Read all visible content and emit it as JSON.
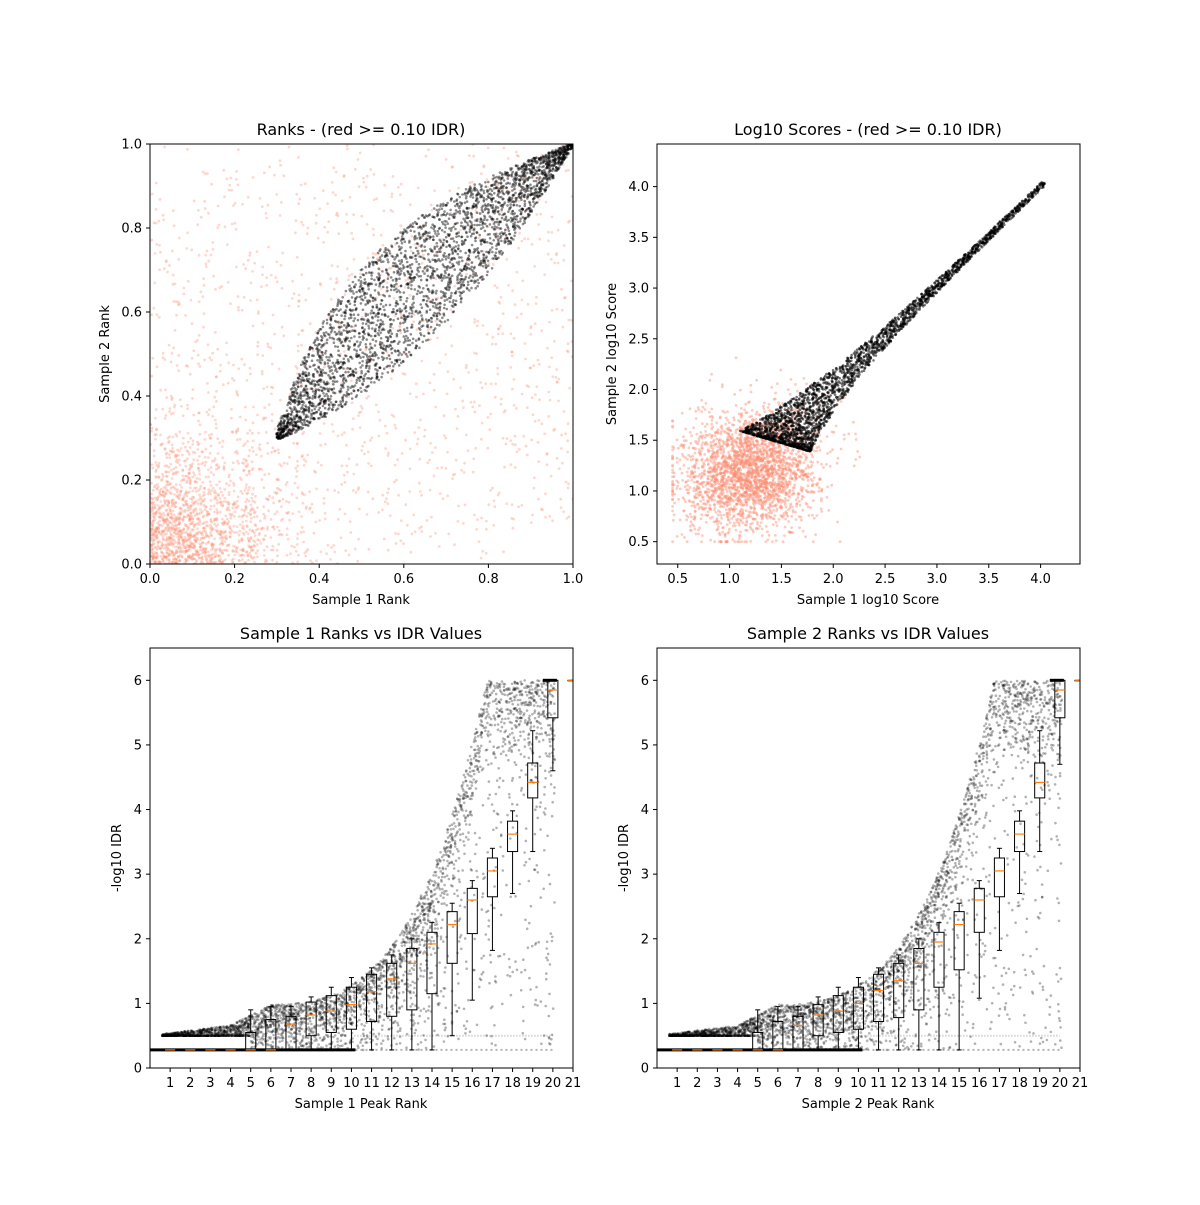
{
  "figure": {
    "background": "#ffffff"
  },
  "colors": {
    "red": "#fa8f73",
    "black": "#000000",
    "median": "#ff7f0e"
  },
  "chart_data": [
    {
      "id": "ranks",
      "type": "scatter",
      "title": "Ranks - (red >= 0.10 IDR)",
      "xlabel": "Sample 1 Rank",
      "ylabel": "Sample 2 Rank",
      "xlim": [
        0,
        1
      ],
      "ylim": [
        0,
        1
      ],
      "xticks": [
        0.0,
        0.2,
        0.4,
        0.6,
        0.8,
        1.0
      ],
      "yticks": [
        0.0,
        0.2,
        0.4,
        0.6,
        0.8,
        1.0
      ],
      "xticklabels": [
        "0.0",
        "0.2",
        "0.4",
        "0.6",
        "0.8",
        "1.0"
      ],
      "yticklabels": [
        "0.0",
        "0.2",
        "0.4",
        "0.6",
        "0.8",
        "1.0"
      ],
      "grid": false,
      "series": [
        {
          "color": "#fa8f73",
          "description_points": "dense cloud concentrated near origin, scattered across full range",
          "center": [
            0.15,
            0.15
          ],
          "spread": [
            0.35,
            0.35
          ]
        },
        {
          "color": "#000000",
          "points": "elongated lens shape along diagonal from (0.30,0.30) to (1.0,1.0), widest near (0.6,0.65)",
          "start": [
            0.3,
            0.3
          ],
          "end": [
            1.0,
            1.0
          ]
        }
      ]
    },
    {
      "id": "scores",
      "type": "scatter",
      "title": "Log10 Scores - (red >= 0.10 IDR)",
      "xlabel": "Sample 1 log10 Score",
      "ylabel": "Sample 2 log10 Score",
      "xlim": [
        0.3,
        4.38
      ],
      "ylim": [
        0.28,
        4.42
      ],
      "xticks": [
        0.5,
        1.0,
        1.5,
        2.0,
        2.5,
        3.0,
        3.5,
        4.0
      ],
      "yticks": [
        0.5,
        1.0,
        1.5,
        2.0,
        2.5,
        3.0,
        3.5,
        4.0
      ],
      "xticklabels": [
        "0.5",
        "1.0",
        "1.5",
        "2.0",
        "2.5",
        "3.0",
        "3.5",
        "4.0"
      ],
      "yticklabels": [
        "0.5",
        "1.0",
        "1.5",
        "2.0",
        "2.5",
        "3.0",
        "3.5",
        "4.0"
      ],
      "grid": false,
      "series": [
        {
          "color": "#fa8f73",
          "cloud_center": [
            1.2,
            1.2
          ],
          "cloud_extent": [
            [
              0.45,
              2.3
            ],
            [
              0.5,
              2.4
            ]
          ]
        },
        {
          "color": "#000000",
          "band_start": [
            1.42,
            1.42
          ],
          "band_end": [
            4.2,
            4.2
          ]
        }
      ]
    },
    {
      "id": "s1idr",
      "type": "scatter",
      "title": "Sample 1 Ranks vs IDR Values",
      "xlabel": "Sample 1 Peak Rank",
      "ylabel": "-log10 IDR",
      "xlim": [
        0,
        21
      ],
      "ylim": [
        0,
        6.5
      ],
      "xticks": [
        1,
        2,
        3,
        4,
        5,
        6,
        7,
        8,
        9,
        10,
        11,
        12,
        13,
        14,
        15,
        16,
        17,
        18,
        19,
        20,
        21
      ],
      "yticks": [
        0,
        1,
        2,
        3,
        4,
        5,
        6
      ],
      "xticklabels": [
        "1",
        "2",
        "3",
        "4",
        "5",
        "6",
        "7",
        "8",
        "9",
        "10",
        "11",
        "12",
        "13",
        "14",
        "15",
        "16",
        "17",
        "18",
        "19",
        "20",
        "21"
      ],
      "yticklabels": [
        "0",
        "1",
        "2",
        "3",
        "4",
        "5",
        "6"
      ],
      "grid": false,
      "boxes": [
        {
          "pos": 1,
          "q1": 0.28,
          "med": 0.28,
          "q3": 0.28,
          "wlo": 0.28,
          "whi": 0.28
        },
        {
          "pos": 2,
          "q1": 0.28,
          "med": 0.28,
          "q3": 0.28,
          "wlo": 0.28,
          "whi": 0.28
        },
        {
          "pos": 3,
          "q1": 0.28,
          "med": 0.28,
          "q3": 0.28,
          "wlo": 0.28,
          "whi": 0.28
        },
        {
          "pos": 4,
          "q1": 0.28,
          "med": 0.28,
          "q3": 0.28,
          "wlo": 0.28,
          "whi": 0.28
        },
        {
          "pos": 5,
          "q1": 0.28,
          "med": 0.28,
          "q3": 0.55,
          "wlo": 0.28,
          "whi": 0.9
        },
        {
          "pos": 6,
          "q1": 0.28,
          "med": 0.28,
          "q3": 0.75,
          "wlo": 0.28,
          "whi": 0.95
        },
        {
          "pos": 7,
          "q1": 0.28,
          "med": 0.68,
          "q3": 0.8,
          "wlo": 0.28,
          "whi": 0.95
        },
        {
          "pos": 8,
          "q1": 0.5,
          "med": 0.82,
          "q3": 1.02,
          "wlo": 0.28,
          "whi": 1.1
        },
        {
          "pos": 9,
          "q1": 0.55,
          "med": 0.88,
          "q3": 1.12,
          "wlo": 0.28,
          "whi": 1.25
        },
        {
          "pos": 10,
          "q1": 0.6,
          "med": 0.98,
          "q3": 1.25,
          "wlo": 0.28,
          "whi": 1.4
        },
        {
          "pos": 11,
          "q1": 0.72,
          "med": 1.18,
          "q3": 1.45,
          "wlo": 0.28,
          "whi": 1.55
        },
        {
          "pos": 12,
          "q1": 0.8,
          "med": 1.38,
          "q3": 1.62,
          "wlo": 0.28,
          "whi": 1.75
        },
        {
          "pos": 13,
          "q1": 0.9,
          "med": 1.62,
          "q3": 1.85,
          "wlo": 0.28,
          "whi": 2.0
        },
        {
          "pos": 14,
          "q1": 1.15,
          "med": 1.92,
          "q3": 2.1,
          "wlo": 0.28,
          "whi": 2.25
        },
        {
          "pos": 15,
          "q1": 1.62,
          "med": 2.22,
          "q3": 2.42,
          "wlo": 0.5,
          "whi": 2.55
        },
        {
          "pos": 16,
          "q1": 2.08,
          "med": 2.6,
          "q3": 2.78,
          "wlo": 1.05,
          "whi": 2.9
        },
        {
          "pos": 17,
          "q1": 2.65,
          "med": 3.05,
          "q3": 3.25,
          "wlo": 1.82,
          "whi": 3.4
        },
        {
          "pos": 18,
          "q1": 3.35,
          "med": 3.62,
          "q3": 3.82,
          "wlo": 2.7,
          "whi": 3.98
        },
        {
          "pos": 19,
          "q1": 4.18,
          "med": 4.42,
          "q3": 4.72,
          "wlo": 3.35,
          "whi": 5.22
        },
        {
          "pos": 20,
          "q1": 5.42,
          "med": 5.85,
          "q3": 6.0,
          "wlo": 4.6,
          "whi": 6.0
        },
        {
          "pos": 21,
          "q1": 6.0,
          "med": 6.0,
          "q3": 6.0,
          "wlo": 6.0,
          "whi": 6.0
        }
      ],
      "scatter_envelope": {
        "floor": 0.28,
        "secondary_floor": 0.5,
        "max": 6.0
      }
    },
    {
      "id": "s2idr",
      "type": "scatter",
      "title": "Sample 2 Ranks vs IDR Values",
      "xlabel": "Sample 2 Peak Rank",
      "ylabel": "-log10 IDR",
      "xlim": [
        0,
        21
      ],
      "ylim": [
        0,
        6.5
      ],
      "xticks": [
        1,
        2,
        3,
        4,
        5,
        6,
        7,
        8,
        9,
        10,
        11,
        12,
        13,
        14,
        15,
        16,
        17,
        18,
        19,
        20,
        21
      ],
      "yticks": [
        0,
        1,
        2,
        3,
        4,
        5,
        6
      ],
      "xticklabels": [
        "1",
        "2",
        "3",
        "4",
        "5",
        "6",
        "7",
        "8",
        "9",
        "10",
        "11",
        "12",
        "13",
        "14",
        "15",
        "16",
        "17",
        "18",
        "19",
        "20",
        "21"
      ],
      "yticklabels": [
        "0",
        "1",
        "2",
        "3",
        "4",
        "5",
        "6"
      ],
      "grid": false,
      "boxes": [
        {
          "pos": 1,
          "q1": 0.28,
          "med": 0.28,
          "q3": 0.28,
          "wlo": 0.28,
          "whi": 0.28
        },
        {
          "pos": 2,
          "q1": 0.28,
          "med": 0.28,
          "q3": 0.28,
          "wlo": 0.28,
          "whi": 0.28
        },
        {
          "pos": 3,
          "q1": 0.28,
          "med": 0.28,
          "q3": 0.28,
          "wlo": 0.28,
          "whi": 0.28
        },
        {
          "pos": 4,
          "q1": 0.28,
          "med": 0.28,
          "q3": 0.28,
          "wlo": 0.28,
          "whi": 0.28
        },
        {
          "pos": 5,
          "q1": 0.28,
          "med": 0.28,
          "q3": 0.55,
          "wlo": 0.28,
          "whi": 0.9
        },
        {
          "pos": 6,
          "q1": 0.28,
          "med": 0.28,
          "q3": 0.72,
          "wlo": 0.28,
          "whi": 0.95
        },
        {
          "pos": 7,
          "q1": 0.28,
          "med": 0.66,
          "q3": 0.8,
          "wlo": 0.28,
          "whi": 0.95
        },
        {
          "pos": 8,
          "q1": 0.5,
          "med": 0.82,
          "q3": 0.98,
          "wlo": 0.28,
          "whi": 1.1
        },
        {
          "pos": 9,
          "q1": 0.55,
          "med": 0.88,
          "q3": 1.12,
          "wlo": 0.28,
          "whi": 1.25
        },
        {
          "pos": 10,
          "q1": 0.6,
          "med": 1.0,
          "q3": 1.25,
          "wlo": 0.28,
          "whi": 1.4
        },
        {
          "pos": 11,
          "q1": 0.72,
          "med": 1.2,
          "q3": 1.45,
          "wlo": 0.28,
          "whi": 1.55
        },
        {
          "pos": 12,
          "q1": 0.78,
          "med": 1.35,
          "q3": 1.62,
          "wlo": 0.28,
          "whi": 1.75
        },
        {
          "pos": 13,
          "q1": 0.9,
          "med": 1.62,
          "q3": 1.85,
          "wlo": 0.28,
          "whi": 2.0
        },
        {
          "pos": 14,
          "q1": 1.25,
          "med": 1.95,
          "q3": 2.1,
          "wlo": 0.28,
          "whi": 2.25
        },
        {
          "pos": 15,
          "q1": 1.52,
          "med": 2.22,
          "q3": 2.42,
          "wlo": 0.28,
          "whi": 2.55
        },
        {
          "pos": 16,
          "q1": 2.1,
          "med": 2.6,
          "q3": 2.78,
          "wlo": 1.08,
          "whi": 2.9
        },
        {
          "pos": 17,
          "q1": 2.65,
          "med": 3.05,
          "q3": 3.25,
          "wlo": 1.82,
          "whi": 3.4
        },
        {
          "pos": 18,
          "q1": 3.35,
          "med": 3.62,
          "q3": 3.82,
          "wlo": 2.7,
          "whi": 3.98
        },
        {
          "pos": 19,
          "q1": 4.18,
          "med": 4.42,
          "q3": 4.72,
          "wlo": 3.35,
          "whi": 5.22
        },
        {
          "pos": 20,
          "q1": 5.42,
          "med": 5.85,
          "q3": 6.0,
          "wlo": 4.7,
          "whi": 6.0
        },
        {
          "pos": 21,
          "q1": 6.0,
          "med": 6.0,
          "q3": 6.0,
          "wlo": 6.0,
          "whi": 6.0
        }
      ],
      "scatter_envelope": {
        "floor": 0.28,
        "secondary_floor": 0.5,
        "max": 6.0
      }
    }
  ]
}
